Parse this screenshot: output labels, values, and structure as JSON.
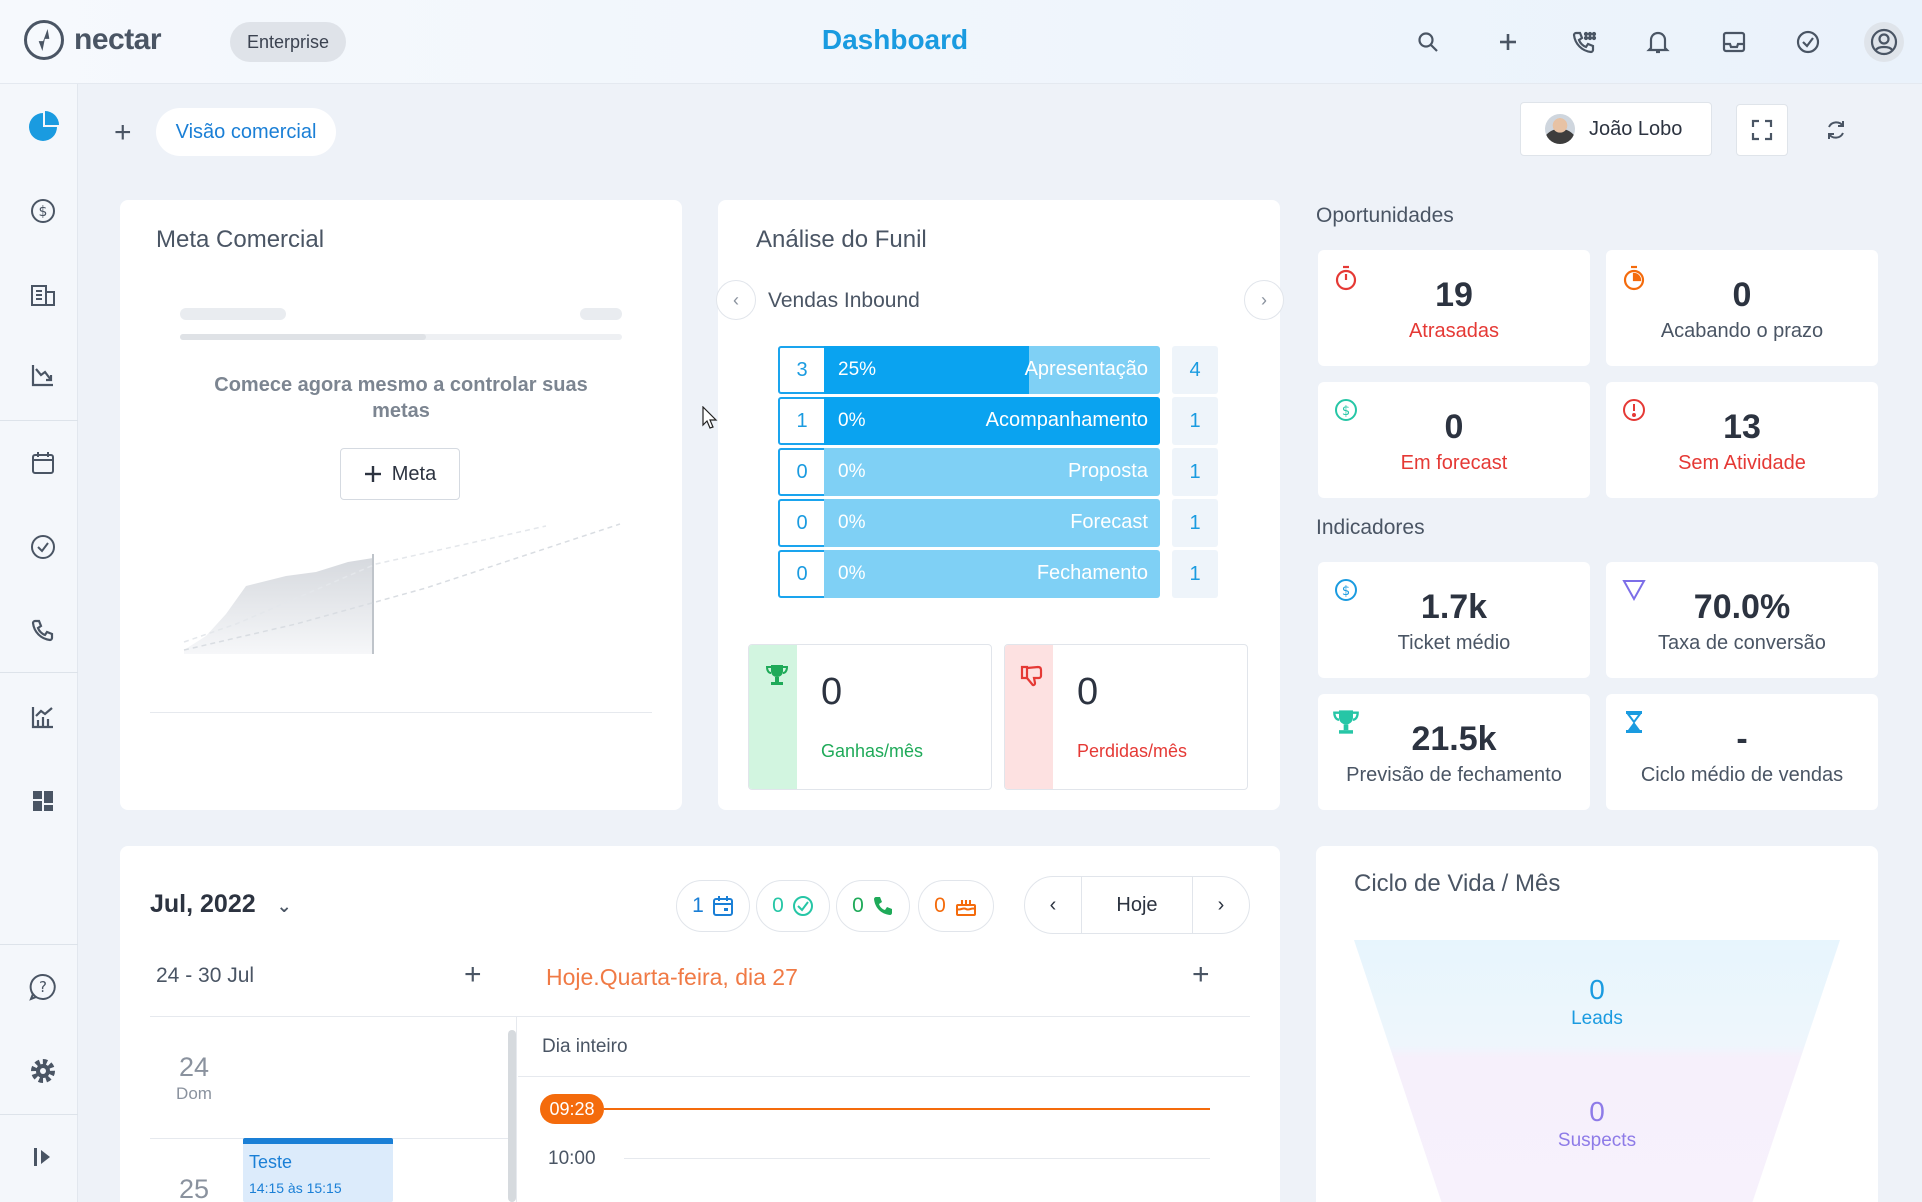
{
  "app": {
    "logo_text": "nectar",
    "plan": "Enterprise",
    "page_title": "Dashboard"
  },
  "topbar_icons": [
    "search-icon",
    "plus-icon",
    "phone-dial-icon",
    "bell-icon",
    "inbox-icon",
    "check-circle-icon",
    "user-circle-icon"
  ],
  "sidebar_icons": [
    "pie-chart-icon",
    "dollar-icon",
    "building-icon",
    "chart-down-icon",
    "calendar-icon",
    "check-circle-icon",
    "phone-icon",
    "chart-up-icon",
    "dashboard-grid-icon",
    "help-icon",
    "gear-icon",
    "expand-sidebar-icon"
  ],
  "toolbar": {
    "view_label": "Visão comercial",
    "user_name": "João Lobo"
  },
  "meta": {
    "title": "Meta Comercial",
    "message": "Comece agora mesmo a controlar suas metas",
    "button_label": "Meta"
  },
  "funnel": {
    "title": "Análise do Funil",
    "pipeline": "Vendas Inbound",
    "stages": [
      {
        "count": "3",
        "percent": "25%",
        "label": "Apresentação",
        "total": "4",
        "fill": 0.61
      },
      {
        "count": "1",
        "percent": "0%",
        "label": "Acompanhamento",
        "total": "1",
        "fill": 1.0
      },
      {
        "count": "0",
        "percent": "0%",
        "label": "Proposta",
        "total": "1",
        "fill": 0
      },
      {
        "count": "0",
        "percent": "0%",
        "label": "Forecast",
        "total": "1",
        "fill": 0
      },
      {
        "count": "0",
        "percent": "0%",
        "label": "Fechamento",
        "total": "1",
        "fill": 0
      }
    ],
    "won": {
      "value": "0",
      "label": "Ganhas/mês"
    },
    "lost": {
      "value": "0",
      "label": "Perdidas/mês"
    }
  },
  "oportunidades": {
    "title": "Oportunidades",
    "items": [
      {
        "value": "19",
        "label": "Atrasadas",
        "icon": "stopwatch-icon"
      },
      {
        "value": "0",
        "label": "Acabando o prazo",
        "icon": "timer-icon"
      },
      {
        "value": "0",
        "label": "Em forecast",
        "icon": "dollar-circle-icon"
      },
      {
        "value": "13",
        "label": "Sem Atividade",
        "icon": "alert-icon"
      }
    ]
  },
  "indicadores": {
    "title": "Indicadores",
    "items": [
      {
        "value": "1.7k",
        "label": "Ticket médio",
        "icon": "dollar-circle-icon"
      },
      {
        "value": "70.0%",
        "label": "Taxa de conversão",
        "icon": "funnel-icon"
      },
      {
        "value": "21.5k",
        "label": "Previsão de fechamento",
        "icon": "trophy-icon"
      },
      {
        "value": "-",
        "label": "Ciclo médio de vendas",
        "icon": "hourglass-icon"
      }
    ]
  },
  "calendar": {
    "month": "Jul, 2022",
    "counters": [
      {
        "value": "1",
        "icon": "calendar-icon"
      },
      {
        "value": "0",
        "icon": "check-circle-icon"
      },
      {
        "value": "0",
        "icon": "phone-icon"
      },
      {
        "value": "0",
        "icon": "cake-icon"
      }
    ],
    "today_button": "Hoje",
    "week_range": "24 - 30 Jul",
    "today_title": "Hoje.Quarta-feira, dia 27",
    "all_day": "Dia inteiro",
    "current_time": "09:28",
    "hour_label": "10:00",
    "days": [
      {
        "num": "24",
        "name": "Dom"
      },
      {
        "num": "25",
        "name": ""
      }
    ],
    "event": {
      "title": "Teste",
      "time": "14:15 às 15:15"
    }
  },
  "lifecycle": {
    "title": "Ciclo de Vida / Mês",
    "stages": [
      {
        "value": "0",
        "label": "Leads"
      },
      {
        "value": "0",
        "label": "Suspects"
      }
    ]
  },
  "colors": {
    "accent": "#1a9be0",
    "danger": "#e53935",
    "success": "#1faa59",
    "orange": "#f46b0c"
  }
}
